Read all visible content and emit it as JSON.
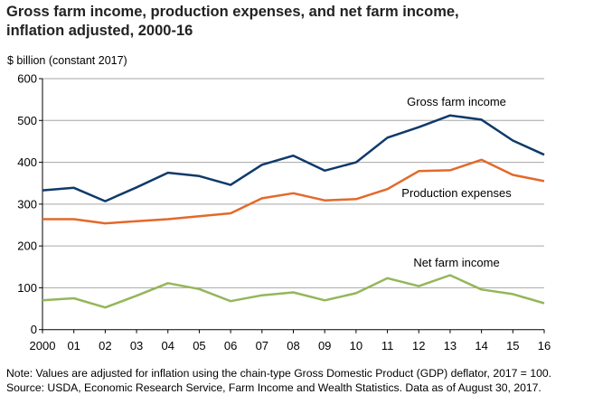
{
  "chart_data": {
    "type": "line",
    "title": "Gross farm income, production expenses, and net farm income, inflation adjusted, 2000-16",
    "title_lines": [
      "Gross farm income, production expenses, and net farm income,",
      "inflation adjusted, 2000-16"
    ],
    "ylabel": "$ billion (constant 2017)",
    "xlabel": "",
    "categories": [
      "2000",
      "01",
      "02",
      "03",
      "04",
      "05",
      "06",
      "07",
      "08",
      "09",
      "10",
      "11",
      "12",
      "13",
      "14",
      "15",
      "16"
    ],
    "ylim": [
      0,
      600
    ],
    "yticks": [
      0,
      100,
      200,
      300,
      400,
      500,
      600
    ],
    "grid": true,
    "series": [
      {
        "name": "Gross farm income",
        "color": "#0e3a6b",
        "values": [
          333,
          339,
          307,
          340,
          375,
          367,
          346,
          394,
          416,
          380,
          400,
          459,
          484,
          512,
          502,
          452,
          418
        ]
      },
      {
        "name": "Production expenses",
        "color": "#e3692a",
        "values": [
          264,
          264,
          254,
          259,
          264,
          271,
          278,
          314,
          326,
          309,
          312,
          336,
          379,
          381,
          406,
          370,
          355
        ]
      },
      {
        "name": "Net farm income",
        "color": "#95b65a",
        "values": [
          70,
          75,
          53,
          81,
          111,
          97,
          68,
          82,
          89,
          70,
          87,
          123,
          104,
          130,
          96,
          85,
          63
        ]
      }
    ]
  },
  "notes": [
    "Note: Values are adjusted for inflation using the chain-type Gross Domestic Product (GDP) deflator, 2017 = 100.",
    "Source: USDA, Economic Research Service, Farm Income and Wealth Statistics. Data as of August 30, 2017."
  ]
}
